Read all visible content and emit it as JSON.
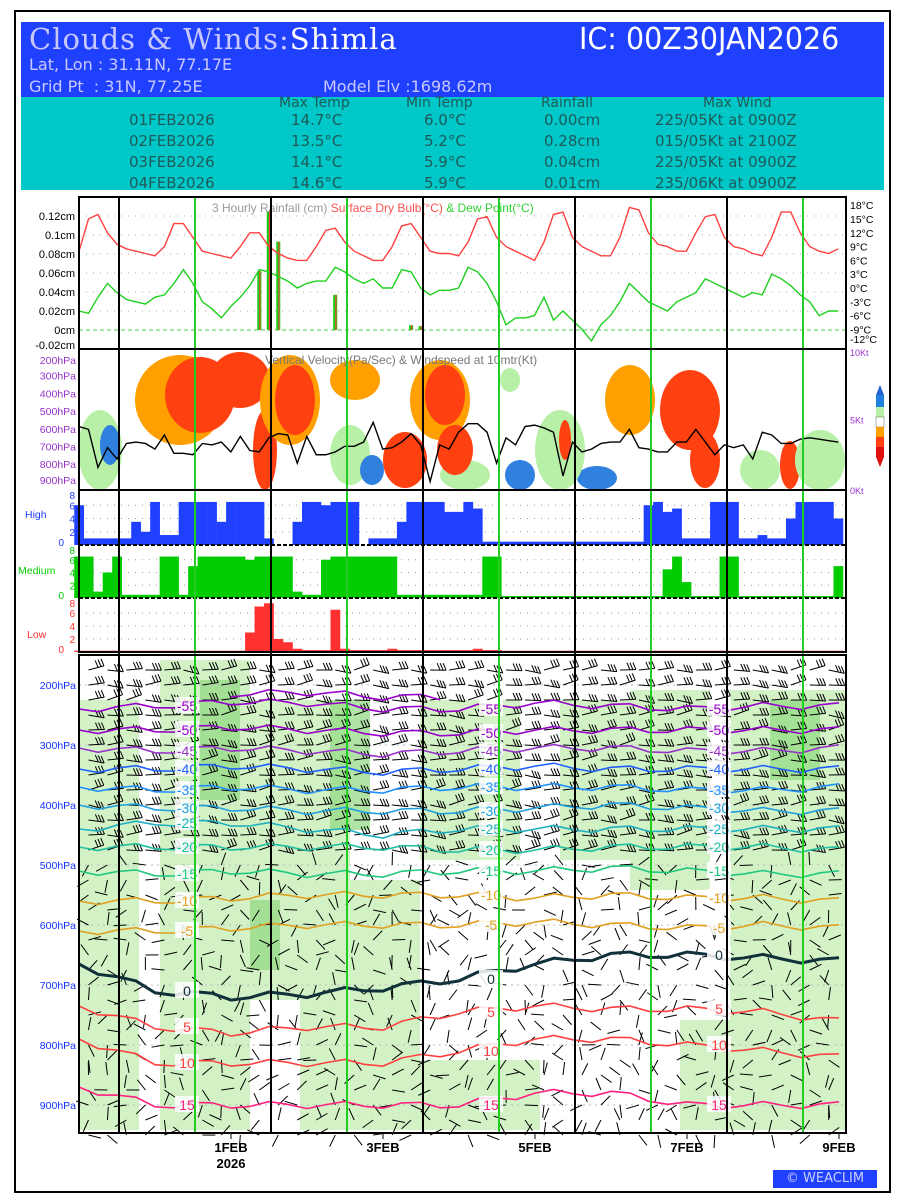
{
  "header": {
    "title_prefix": "Clouds & Winds:",
    "station": "Shimla",
    "ic": "IC: 00Z30JAN2026",
    "latlon": "Lat, Lon : 31.11N, 77.17E",
    "gridpt": "Grid Pt  : 31N, 77.25E",
    "elev": "Model Elv :1698.62m"
  },
  "summary": {
    "columns": [
      "Max Temp",
      "Min Temp",
      "Rainfall",
      "Max Wind"
    ],
    "rows": [
      {
        "date": "01FEB2026",
        "max": "14.7°C",
        "min": "6.0°C",
        "rain": "0.00cm",
        "wind": "225/05Kt at 0900Z"
      },
      {
        "date": "02FEB2026",
        "max": "13.5°C",
        "min": "5.2°C",
        "rain": "0.28cm",
        "wind": "015/05Kt at 2100Z"
      },
      {
        "date": "03FEB2026",
        "max": "14.1°C",
        "min": "5.9°C",
        "rain": "0.04cm",
        "wind": "225/05Kt at 0900Z"
      },
      {
        "date": "04FEB2026",
        "max": "14.6°C",
        "min": "5.9°C",
        "rain": "0.01cm",
        "wind": "235/06Kt at 0900Z"
      }
    ]
  },
  "x_axis": {
    "labels": [
      "1FEB",
      "3FEB",
      "5FEB",
      "7FEB",
      "9FEB"
    ],
    "year": "2026",
    "start": "00Z30JAN2026",
    "step_hours": 3
  },
  "footer": {
    "logo": "© WEACLIM"
  },
  "colors": {
    "header": "#2040ff",
    "summary": "#00c8c8",
    "temp": "#ff4040",
    "dew": "#20d020",
    "high": "#2040ff",
    "medium": "#00cc00",
    "low": "#ff3030"
  },
  "chart_data": [
    {
      "type": "line",
      "name": "rain-temp",
      "title_parts": [
        "3 Hourly Rainfall (cm)",
        "Surface Dry Bulb(°C)",
        "& Dew Point(°C)"
      ],
      "left_ticks": [
        "0.12cm",
        "0.1cm",
        "0.08cm",
        "0.06cm",
        "0.04cm",
        "0.02cm",
        "0cm",
        "-0.02cm"
      ],
      "left_values": [
        0.12,
        0.1,
        0.08,
        0.06,
        0.04,
        0.02,
        0,
        -0.02
      ],
      "right_ticks": [
        "18°C",
        "15°C",
        "12°C",
        "9°C",
        "6°C",
        "3°C",
        "0°C",
        "-3°C",
        "-6°C",
        "-9°C",
        "-12°C"
      ],
      "right_values": [
        18,
        15,
        12,
        9,
        6,
        3,
        0,
        -3,
        -6,
        -9,
        -12
      ],
      "ylim_rain": [
        -0.02,
        0.13
      ],
      "ylim_temp": [
        -12,
        19
      ],
      "temperature": [
        8,
        15,
        16,
        12,
        9.5,
        8.5,
        8,
        7.5,
        7,
        9,
        14,
        14,
        11,
        8,
        7.5,
        7,
        6.5,
        9,
        12,
        12,
        9,
        7.5,
        6.5,
        6,
        6,
        9,
        12.5,
        13,
        10,
        8,
        7,
        6,
        6,
        9,
        13.5,
        14,
        11,
        8,
        7.5,
        7.5,
        7,
        10,
        15,
        15.5,
        11,
        9,
        8,
        7,
        6,
        10,
        16,
        16.5,
        11,
        9,
        8,
        7,
        7,
        11,
        17.5,
        17,
        12,
        9.5,
        9,
        8,
        8,
        12,
        15.5,
        16,
        11,
        9,
        8.5,
        7.5,
        7,
        11,
        16.5,
        16.5,
        12,
        9,
        8,
        7.5,
        8.5
      ],
      "dew_point": [
        -5,
        -5.5,
        -2,
        1,
        -1,
        -2.5,
        -3,
        -3.5,
        -2,
        -1.5,
        1,
        4,
        1,
        -3,
        -4.5,
        -6.5,
        -4,
        -2,
        0.5,
        4,
        3.5,
        2.5,
        1.5,
        0,
        1,
        1.5,
        1.5,
        4.5,
        3.5,
        2,
        1,
        2,
        0,
        0,
        4,
        3.5,
        0,
        -1.5,
        -0.5,
        -0.5,
        0,
        4.5,
        3.5,
        1,
        -3,
        -8,
        -6.5,
        -6.5,
        -6,
        -2,
        -7,
        -5,
        -7,
        -9,
        -11.5,
        -8,
        -6,
        -3,
        1,
        -1,
        -3,
        -4,
        -5,
        -3,
        -2,
        -1,
        2,
        1,
        0,
        -1,
        -2,
        -1,
        -1.5,
        3,
        2,
        0.5,
        -1.5,
        -3,
        -6,
        -5,
        -5
      ],
      "rainfall": [
        {
          "step": 19,
          "value": 0.062
        },
        {
          "step": 20,
          "value": 0.125
        },
        {
          "step": 21,
          "value": 0.093
        },
        {
          "step": 27,
          "value": 0.037
        },
        {
          "step": 35,
          "value": 0.005
        },
        {
          "step": 36,
          "value": 0.004
        }
      ]
    },
    {
      "type": "heatmap",
      "name": "vertical-velocity",
      "title": "Vertical Velocity(Pa/Sec) & Windspeed at 10mtr(Kt)",
      "pressure_ticks": [
        "200hPa",
        "300hPa",
        "400hPa",
        "500hPa",
        "600hPa",
        "700hPa",
        "800hPa",
        "900hPa"
      ],
      "wind_ticks": [
        "10Kt",
        "5Kt",
        "0Kt"
      ],
      "ylim_wind": [
        0,
        10
      ],
      "windspeed_kt": [
        4.5,
        4.3,
        1.6,
        3,
        2.2,
        3.3,
        3.4,
        3.3,
        2.9,
        3.9,
        2.6,
        2.6,
        2.5,
        3.3,
        3.2,
        3.4,
        2.7,
        3.8,
        2.8,
        2.7,
        3.7,
        4,
        3.9,
        1.9,
        3.8,
        2.5,
        2.5,
        2.7,
        3.1,
        3.1,
        3.4,
        4.8,
        2.9,
        3,
        3.4,
        4,
        3.2,
        0.6,
        3.2,
        2.9,
        4.1,
        4.7,
        4.7,
        4.1,
        1.9,
        3.7,
        3.2,
        4.5,
        4.6,
        4.4,
        4.1,
        1,
        3.4,
        2.7,
        2.9,
        3.3,
        3.4,
        3.4,
        4.3,
        3,
        2.9,
        2.7,
        2.7,
        3.4,
        3.4,
        4.3,
        3.4,
        2.5,
        3.2,
        3,
        3.2,
        2.2,
        4.1,
        3.9,
        3.3,
        3.3,
        3.6,
        3.7,
        3.6,
        3.5,
        3.4
      ]
    },
    {
      "type": "bar",
      "name": "high-cloud",
      "label": "High",
      "ticks": [
        "8",
        "6",
        "4",
        "2",
        "0"
      ],
      "ylim": [
        0,
        8
      ],
      "values": [
        6,
        1,
        1,
        1,
        1,
        1,
        3.5,
        2,
        6.5,
        1.5,
        1.5,
        6.5,
        6.5,
        6.5,
        6.5,
        3.5,
        6.5,
        6.5,
        6.5,
        6.5,
        1,
        0,
        0,
        3.5,
        6.5,
        6.5,
        6,
        6.5,
        6.5,
        6.5,
        0,
        1,
        1,
        1,
        3.5,
        6.5,
        6.5,
        6.5,
        6.5,
        5,
        5,
        6.5,
        5.5,
        0.5,
        0.5,
        0.5,
        0.5,
        0.5,
        0.5,
        0.5,
        0.5,
        0.5,
        0.5,
        0.5,
        0.5,
        0.5,
        0.5,
        0.5,
        0.5,
        0.5,
        6,
        6.5,
        5,
        5.5,
        1,
        1,
        1,
        6.5,
        6.5,
        6.5,
        1,
        1,
        1.5,
        1,
        1,
        4,
        6.5,
        6.5,
        6.5,
        6.5,
        4
      ]
    },
    {
      "type": "bar",
      "name": "medium-cloud",
      "label": "Medium",
      "ticks": [
        "8",
        "6",
        "4",
        "2",
        "0"
      ],
      "ylim": [
        0,
        8
      ],
      "values": [
        6.5,
        6.5,
        1,
        4,
        6.5,
        0.5,
        0.5,
        0.5,
        0.5,
        6.5,
        6.5,
        0.5,
        5,
        6.5,
        6.5,
        6.5,
        6.5,
        6.5,
        6,
        6.5,
        6.5,
        6.5,
        6.5,
        1,
        0.5,
        0.5,
        6,
        6.5,
        6.5,
        6.5,
        6.5,
        6.5,
        6.5,
        6.5,
        0.5,
        0.5,
        0.5,
        0.5,
        0.5,
        0.5,
        0.5,
        0.5,
        0.5,
        6.5,
        6.5,
        0.3,
        0.3,
        0.3,
        0.3,
        0.3,
        0.3,
        0.3,
        0.3,
        0.3,
        0.3,
        0.3,
        0.3,
        0.3,
        0.3,
        0.3,
        0.3,
        0.3,
        4.5,
        6.5,
        2.5,
        0.3,
        0.3,
        0.3,
        6.5,
        6.5,
        0.3,
        0.3,
        0.3,
        0.3,
        0.3,
        0.3,
        0.3,
        0.3,
        0.3,
        0.3,
        5
      ]
    },
    {
      "type": "bar",
      "name": "low-cloud",
      "label": "Low",
      "ticks": [
        "8",
        "6",
        "4",
        "2",
        "0"
      ],
      "ylim": [
        0,
        8
      ],
      "values": [
        0.2,
        0.2,
        0.2,
        0.2,
        0.2,
        0.2,
        0.2,
        0.2,
        0.2,
        0.2,
        0.2,
        0.2,
        0.2,
        0.2,
        0.2,
        0.2,
        0.2,
        0.2,
        3,
        7,
        7.5,
        2,
        1.5,
        0.5,
        0.3,
        0.3,
        0.3,
        6.5,
        0.5,
        0.3,
        0.3,
        0.3,
        0.3,
        0.5,
        0.3,
        0.3,
        0.3,
        0.3,
        0.3,
        0.3,
        0.3,
        0.3,
        0.5,
        0.3,
        0.3,
        0.2,
        0.2,
        0.2,
        0.2,
        0.2,
        0.2,
        0.2,
        0.2,
        0.2,
        0.2,
        0.2,
        0.2,
        0.2,
        0.2,
        0.2,
        0.2,
        0.2,
        0.2,
        0.2,
        0.2,
        0.2,
        0.2,
        0.2,
        0.2,
        0.2,
        0.2,
        0.2,
        0.2,
        0.2,
        0.2,
        0.2,
        0.2,
        0.2,
        0.2,
        0.2,
        0.2
      ]
    },
    {
      "type": "line",
      "name": "cross-section-isotherms",
      "pressure_ticks": [
        "200hPa",
        "300hPa",
        "400hPa",
        "500hPa",
        "600hPa",
        "700hPa",
        "800hPa",
        "900hPa"
      ],
      "pressure_values": [
        200,
        300,
        400,
        500,
        600,
        700,
        800,
        900
      ],
      "ylim_hpa": [
        150,
        975
      ],
      "x_days": [
        0,
        1,
        2,
        3,
        4,
        5,
        6,
        7,
        8,
        9,
        10
      ],
      "isotherms": [
        {
          "level": "-60",
          "color": "#9900cc",
          "hpa": [
            null,
            null,
            215,
            212,
            220,
            null,
            null,
            null,
            null,
            null,
            null
          ]
        },
        {
          "level": "-55",
          "color": "#9900cc",
          "hpa": [
            240,
            235,
            228,
            230,
            240,
            240,
            230,
            235,
            240,
            235,
            235
          ]
        },
        {
          "level": "-50",
          "color": "#9900cc",
          "hpa": [
            275,
            275,
            270,
            275,
            280,
            280,
            275,
            275,
            275,
            275,
            275
          ]
        },
        {
          "level": "-45",
          "color": "#9933cc",
          "hpa": [
            305,
            310,
            305,
            310,
            315,
            310,
            305,
            305,
            310,
            310,
            305
          ]
        },
        {
          "level": "-40",
          "color": "#2060ff",
          "hpa": [
            340,
            340,
            335,
            340,
            345,
            340,
            335,
            340,
            340,
            340,
            340
          ]
        },
        {
          "level": "-35",
          "color": "#2090ff",
          "hpa": [
            370,
            375,
            370,
            375,
            375,
            370,
            370,
            370,
            375,
            375,
            370
          ]
        },
        {
          "level": "-30",
          "color": "#20a0e0",
          "hpa": [
            400,
            405,
            405,
            410,
            410,
            410,
            405,
            400,
            405,
            410,
            410
          ]
        },
        {
          "level": "-25",
          "color": "#20b0c0",
          "hpa": [
            440,
            430,
            430,
            440,
            450,
            440,
            440,
            440,
            440,
            440,
            440
          ]
        },
        {
          "level": "-20",
          "color": "#20c0a0",
          "hpa": [
            470,
            470,
            470,
            470,
            470,
            475,
            475,
            470,
            470,
            470,
            475
          ]
        },
        {
          "level": "-15",
          "color": "#20c880",
          "hpa": [
            510,
            515,
            510,
            515,
            515,
            510,
            510,
            505,
            510,
            515,
            515
          ]
        },
        {
          "level": "-10",
          "color": "#e0a020",
          "hpa": [
            560,
            560,
            555,
            550,
            550,
            550,
            555,
            550,
            555,
            555,
            560
          ]
        },
        {
          "level": "-5",
          "color": "#e0a020",
          "hpa": [
            610,
            610,
            605,
            600,
            600,
            600,
            595,
            600,
            605,
            600,
            605
          ]
        },
        {
          "level": "0",
          "color": "#10303a",
          "hpa": [
            665,
            710,
            720,
            715,
            705,
            690,
            665,
            650,
            650,
            655,
            660
          ]
        },
        {
          "level": "5",
          "color": "#ff4040",
          "hpa": [
            735,
            770,
            780,
            770,
            770,
            745,
            735,
            740,
            740,
            745,
            760
          ]
        },
        {
          "level": "10",
          "color": "#ff4040",
          "hpa": [
            790,
            830,
            830,
            830,
            830,
            810,
            790,
            790,
            800,
            810,
            820
          ]
        },
        {
          "level": "15",
          "color": "#ff2080",
          "hpa": [
            870,
            900,
            900,
            900,
            900,
            900,
            880,
            880,
            900,
            900,
            900
          ]
        }
      ]
    }
  ]
}
